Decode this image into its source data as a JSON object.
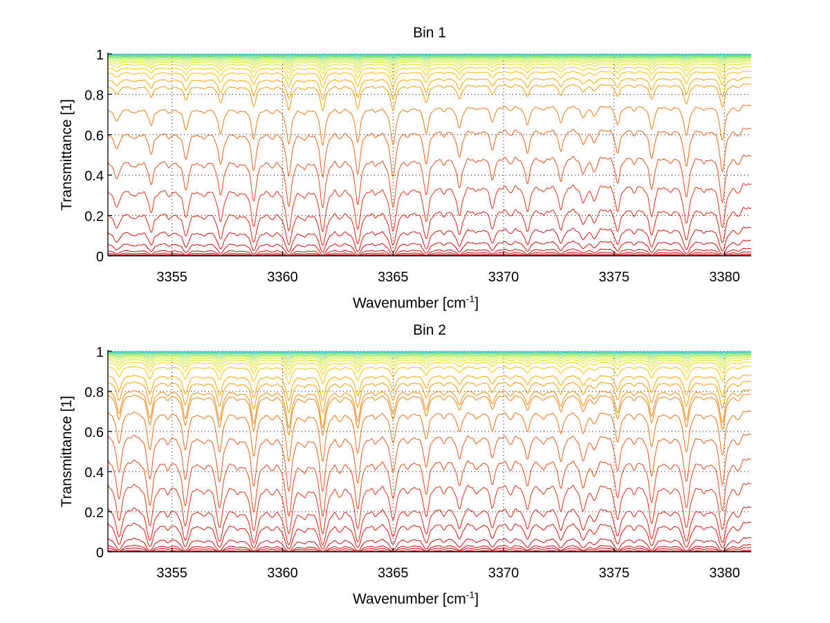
{
  "chart_data": [
    {
      "type": "line",
      "title": "Bin 1",
      "xlabel": "Wavenumber [cm",
      "xlabel_superscript": "-1",
      "xlabel_suffix": "]",
      "ylabel": "Transmittance [1]",
      "xlim": [
        3352.1,
        3381.2
      ],
      "ylim": [
        0,
        1
      ],
      "xticks": [
        3355,
        3360,
        3365,
        3370,
        3375,
        3380
      ],
      "xtick_labels": [
        "3355",
        "3360",
        "3365",
        "3370",
        "3375",
        "3380"
      ],
      "yticks": [
        0,
        0.2,
        0.4,
        0.6,
        0.8,
        1
      ],
      "ytick_labels": [
        "0",
        "0.2",
        "0.4",
        "0.6",
        "0.8",
        "1"
      ],
      "grid": true,
      "colormap": "jet (red at low transmittance to cyan at unity)",
      "baseline_levels": [
        0.005,
        0.012,
        0.025,
        0.045,
        0.09,
        0.16,
        0.26,
        0.38,
        0.52,
        0.65,
        0.76,
        0.86,
        0.89,
        0.92,
        0.94,
        0.955,
        0.965,
        0.972,
        0.978,
        0.983,
        0.987,
        0.99,
        0.993,
        0.995,
        0.997,
        0.998,
        0.999
      ],
      "baseline_tilt_left": 0.1,
      "absorption_lines": [
        {
          "center": 3352.5,
          "strength": 0.35
        },
        {
          "center": 3353.3,
          "strength": 0.12
        },
        {
          "center": 3354.06,
          "strength": 0.45
        },
        {
          "center": 3354.9,
          "strength": 0.1
        },
        {
          "center": 3355.63,
          "strength": 0.6
        },
        {
          "center": 3356.4,
          "strength": 0.12
        },
        {
          "center": 3357.2,
          "strength": 0.75
        },
        {
          "center": 3358.0,
          "strength": 0.1
        },
        {
          "center": 3358.7,
          "strength": 0.9
        },
        {
          "center": 3359.5,
          "strength": 0.12
        },
        {
          "center": 3360.28,
          "strength": 1.1
        },
        {
          "center": 3361.0,
          "strength": 0.15
        },
        {
          "center": 3361.82,
          "strength": 1.15
        },
        {
          "center": 3362.6,
          "strength": 0.12
        },
        {
          "center": 3363.4,
          "strength": 1.05
        },
        {
          "center": 3364.2,
          "strength": 0.1
        },
        {
          "center": 3365.0,
          "strength": 1.2
        },
        {
          "center": 3365.7,
          "strength": 0.1
        },
        {
          "center": 3366.5,
          "strength": 0.8
        },
        {
          "center": 3367.3,
          "strength": 0.1
        },
        {
          "center": 3368.0,
          "strength": 0.65
        },
        {
          "center": 3368.8,
          "strength": 0.1
        },
        {
          "center": 3369.5,
          "strength": 0.45
        },
        {
          "center": 3370.3,
          "strength": 0.12
        },
        {
          "center": 3371.07,
          "strength": 0.55
        },
        {
          "center": 3371.8,
          "strength": 0.12
        },
        {
          "center": 3372.6,
          "strength": 0.5
        },
        {
          "center": 3373.6,
          "strength": 0.35
        },
        {
          "center": 3374.1,
          "strength": 0.3
        },
        {
          "center": 3375.16,
          "strength": 0.55
        },
        {
          "center": 3375.9,
          "strength": 0.12
        },
        {
          "center": 3376.7,
          "strength": 0.7
        },
        {
          "center": 3377.5,
          "strength": 0.12
        },
        {
          "center": 3378.27,
          "strength": 0.95
        },
        {
          "center": 3379.1,
          "strength": 0.12
        },
        {
          "center": 3379.9,
          "strength": 1.1
        },
        {
          "center": 3380.6,
          "strength": 0.15
        }
      ],
      "line_halfwidth": 0.13
    },
    {
      "type": "line",
      "title": "Bin 2",
      "xlabel": "Wavenumber [cm",
      "xlabel_superscript": "-1",
      "xlabel_suffix": "]",
      "ylabel": "Transmittance [1]",
      "xlim": [
        3352.1,
        3381.2
      ],
      "ylim": [
        0,
        1
      ],
      "xticks": [
        3355,
        3360,
        3365,
        3370,
        3375,
        3380
      ],
      "xtick_labels": [
        "3355",
        "3360",
        "3365",
        "3370",
        "3375",
        "3380"
      ],
      "yticks": [
        0,
        0.2,
        0.4,
        0.6,
        0.8,
        1
      ],
      "ytick_labels": [
        "0",
        "0.2",
        "0.4",
        "0.6",
        "0.8",
        "1"
      ],
      "grid": true,
      "colormap": "jet (red at low transmittance to cyan at unity)",
      "baseline_levels": [
        0.004,
        0.01,
        0.028,
        0.045,
        0.086,
        0.17,
        0.25,
        0.37,
        0.49,
        0.61,
        0.72,
        0.8,
        0.82,
        0.86,
        0.89,
        0.93,
        0.95,
        0.962,
        0.97,
        0.977,
        0.982,
        0.986,
        0.99,
        0.993,
        0.995,
        0.997,
        0.998,
        0.999
      ],
      "baseline_tilt_left": 0.0,
      "absorption_lines": [
        {
          "center": 3352.6,
          "strength": 0.9
        },
        {
          "center": 3354.0,
          "strength": 1.1
        },
        {
          "center": 3354.8,
          "strength": 0.15
        },
        {
          "center": 3355.6,
          "strength": 1.1
        },
        {
          "center": 3356.4,
          "strength": 0.15
        },
        {
          "center": 3357.15,
          "strength": 1.2
        },
        {
          "center": 3358.0,
          "strength": 0.15
        },
        {
          "center": 3358.7,
          "strength": 1.3
        },
        {
          "center": 3359.5,
          "strength": 0.15
        },
        {
          "center": 3360.28,
          "strength": 1.5
        },
        {
          "center": 3361.0,
          "strength": 0.2
        },
        {
          "center": 3361.82,
          "strength": 1.5
        },
        {
          "center": 3362.6,
          "strength": 0.2
        },
        {
          "center": 3363.4,
          "strength": 1.2
        },
        {
          "center": 3364.2,
          "strength": 0.15
        },
        {
          "center": 3365.0,
          "strength": 0.9
        },
        {
          "center": 3365.7,
          "strength": 0.15
        },
        {
          "center": 3366.5,
          "strength": 0.75
        },
        {
          "center": 3367.3,
          "strength": 0.15
        },
        {
          "center": 3368.0,
          "strength": 0.55
        },
        {
          "center": 3368.8,
          "strength": 0.2
        },
        {
          "center": 3369.5,
          "strength": 0.5
        },
        {
          "center": 3370.3,
          "strength": 0.2
        },
        {
          "center": 3371.07,
          "strength": 0.55
        },
        {
          "center": 3371.8,
          "strength": 0.2
        },
        {
          "center": 3372.6,
          "strength": 0.6
        },
        {
          "center": 3373.6,
          "strength": 0.6
        },
        {
          "center": 3374.1,
          "strength": 0.3
        },
        {
          "center": 3375.16,
          "strength": 0.85
        },
        {
          "center": 3375.9,
          "strength": 0.15
        },
        {
          "center": 3376.7,
          "strength": 1.0
        },
        {
          "center": 3377.5,
          "strength": 0.15
        },
        {
          "center": 3378.27,
          "strength": 1.2
        },
        {
          "center": 3379.1,
          "strength": 0.15
        },
        {
          "center": 3379.9,
          "strength": 1.3
        },
        {
          "center": 3380.6,
          "strength": 0.2
        }
      ],
      "line_halfwidth": 0.14
    }
  ]
}
